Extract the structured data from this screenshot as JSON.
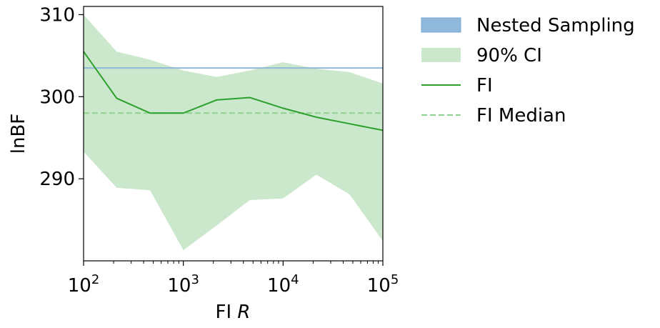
{
  "chart_data": {
    "type": "line",
    "xlabel": "FI R",
    "ylabel": "lnBF",
    "x_scale": "log",
    "xlim": [
      100,
      100000
    ],
    "ylim": [
      280,
      311
    ],
    "x_ticks": [
      {
        "value": 100,
        "base": "10",
        "exp": "2"
      },
      {
        "value": 1000,
        "base": "10",
        "exp": "3"
      },
      {
        "value": 10000,
        "base": "10",
        "exp": "4"
      },
      {
        "value": 100000,
        "base": "10",
        "exp": "5"
      }
    ],
    "y_ticks": [
      {
        "value": 290,
        "label": "290"
      },
      {
        "value": 300,
        "label": "300"
      },
      {
        "value": 310,
        "label": "310"
      }
    ],
    "grid": false,
    "legend_position": "outside-right",
    "colors": {
      "nested": "#8fb8db",
      "ci_fill": "#cce8cc",
      "fi_line": "#2ca02c",
      "fi_median": "#8fd18f"
    },
    "series": [
      {
        "name": "Nested Sampling",
        "kind": "hline",
        "value": 303.5
      },
      {
        "name": "90% CI",
        "kind": "band",
        "x": [
          100,
          215,
          464,
          1000,
          2154,
          4642,
          10000,
          21544,
          46416,
          100000
        ],
        "lower": [
          293.3,
          288.9,
          288.6,
          281.3,
          284.3,
          287.4,
          287.6,
          290.5,
          288.1,
          282.4
        ],
        "upper": [
          310.0,
          305.5,
          304.5,
          303.2,
          302.4,
          303.2,
          304.2,
          303.4,
          303.0,
          301.6
        ]
      },
      {
        "name": "FI",
        "kind": "line",
        "x": [
          100,
          215,
          464,
          1000,
          2154,
          4642,
          10000,
          21544,
          46416,
          100000
        ],
        "y": [
          305.5,
          299.8,
          298.0,
          298.0,
          299.6,
          299.9,
          298.6,
          297.5,
          296.7,
          295.9
        ]
      },
      {
        "name": "FI Median",
        "kind": "hline-dashed",
        "value": 298.0
      }
    ]
  }
}
